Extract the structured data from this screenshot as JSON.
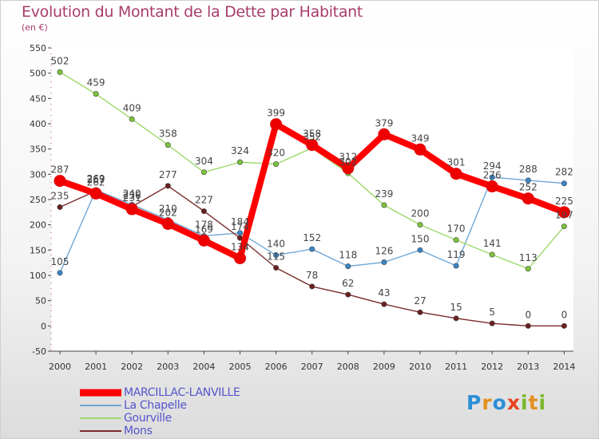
{
  "title": "Evolution du Montant de la Dette par Habitant",
  "subtitle": "(en €)",
  "logo": {
    "text": "Proxiti",
    "letters": [
      {
        "ch": "P",
        "color": "#2b8fd6"
      },
      {
        "ch": "r",
        "color": "#e48f1e"
      },
      {
        "ch": "o",
        "color": "#2b8fd6"
      },
      {
        "ch": "x",
        "color": "#e6421d"
      },
      {
        "ch": "i",
        "color": "#7ab829"
      },
      {
        "ch": "t",
        "color": "#e48f1e"
      },
      {
        "ch": "i",
        "color": "#7ab829"
      }
    ]
  },
  "chart_data": {
    "type": "line",
    "title": "Evolution du Montant de la Dette par Habitant",
    "subtitle": "(en €)",
    "x": [
      2000,
      2001,
      2002,
      2003,
      2004,
      2005,
      2006,
      2007,
      2008,
      2009,
      2010,
      2011,
      2012,
      2013,
      2014
    ],
    "xlabel": "",
    "ylabel": "",
    "ylim": [
      -50,
      550
    ],
    "yticks": [
      -50,
      0,
      50,
      100,
      150,
      200,
      250,
      300,
      350,
      400,
      450,
      500,
      550
    ],
    "grid": false,
    "legend_position": "bottom-left",
    "series": [
      {
        "name": "MARCILLAC-LANVILLE",
        "color": "#ff0000",
        "marker": "#ee0000",
        "style": "bold",
        "values": [
          287,
          262,
          231,
          202,
          169,
          134,
          399,
          358,
          312,
          379,
          349,
          301,
          276,
          252,
          225
        ],
        "labels": [
          "287",
          "262",
          "231",
          "202",
          "169",
          "134",
          "399",
          "358",
          "312",
          "379",
          "349",
          "301",
          "276",
          "252",
          "225"
        ]
      },
      {
        "name": "La Chapelle",
        "color": "#6fa7d6",
        "marker": "#3a85c6",
        "style": "thin",
        "values": [
          105,
          269,
          240,
          210,
          178,
          184,
          140,
          152,
          118,
          126,
          150,
          119,
          294,
          288,
          282
        ],
        "labels": [
          "105",
          "269",
          "240",
          "210",
          "178",
          "184",
          "140",
          "152",
          "118",
          "126",
          "150",
          "119",
          "294",
          "288",
          "282"
        ]
      },
      {
        "name": "Gourville",
        "color": "#9ed86a",
        "marker": "#7cc43a",
        "style": "thin",
        "values": [
          502,
          459,
          409,
          358,
          304,
          324,
          320,
          352,
          302,
          239,
          200,
          170,
          141,
          113,
          197
        ],
        "labels": [
          "502",
          "459",
          "409",
          "358",
          "304",
          "324",
          "320",
          "352",
          "302",
          "239",
          "200",
          "170",
          "141",
          "113",
          "197"
        ]
      },
      {
        "name": "Mons",
        "color": "#7a2a2a",
        "marker": "#6a1f1f",
        "style": "thin",
        "values": [
          235,
          267,
          236,
          277,
          227,
          174,
          115,
          78,
          62,
          43,
          27,
          15,
          5,
          0,
          0
        ],
        "labels": [
          "235",
          "267",
          "236",
          "277",
          "227",
          "174",
          "115",
          "78",
          "62",
          "43",
          "27",
          "15",
          "5",
          "0",
          "0"
        ]
      }
    ]
  }
}
